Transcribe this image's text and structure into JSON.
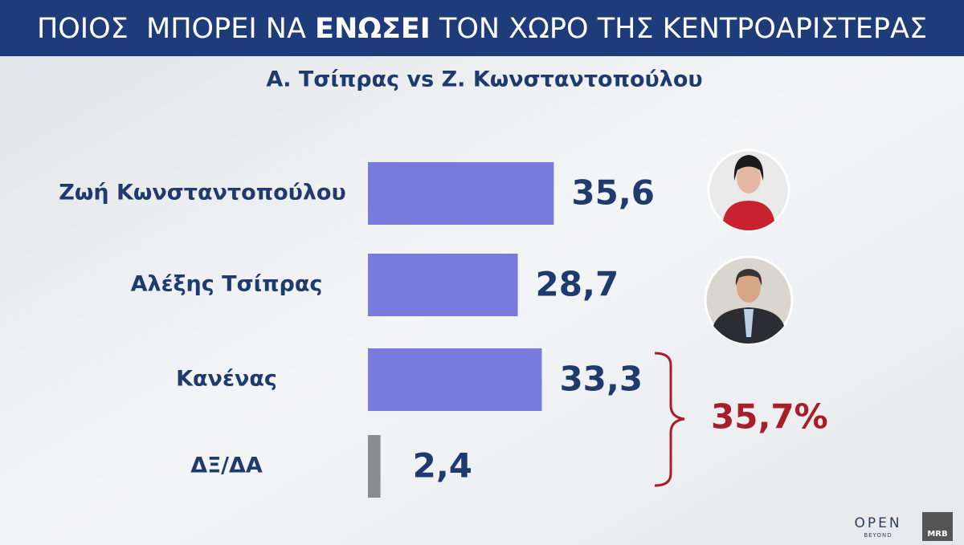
{
  "chart_data": {
    "type": "hbar",
    "title_parts": [
      "ΠΟΙΟΣ  ΜΠΟΡΕΙ ΝΑ ",
      "ΕΝΩΣΕΙ",
      " ΤΟΝ ΧΩΡΟ ΤΗΣ ΚΕΝΤΡΟΑΡΙΣΤΕΡΑΣ"
    ],
    "subtitle": "Α. Τσίπρας vs Ζ. Κωνσταντοπούλου",
    "categories": [
      "Ζωή Κωνσταντοπούλου",
      "Αλέξης Τσίπρας",
      "Κανένας",
      "ΔΞ/ΔΑ"
    ],
    "values": [
      35.6,
      28.7,
      33.3,
      2.4
    ],
    "value_labels": [
      "35,6",
      "28,7",
      "33,3",
      "2,4"
    ],
    "colors": [
      "#7a79dc",
      "#7a79dc",
      "#7a79dc",
      "#8c8c8c"
    ],
    "annotation": "35,7%"
  },
  "logos": [
    "OPEN",
    "BEYOND",
    "MRB"
  ]
}
